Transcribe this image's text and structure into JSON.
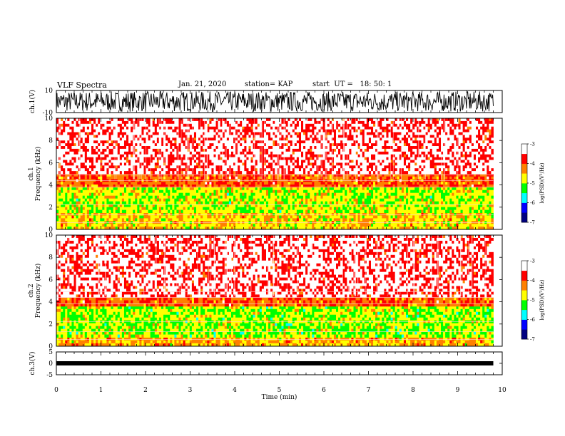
{
  "header": {
    "title": "VLF Spectra",
    "date": "Jan. 21, 2020",
    "station": "station= KAP",
    "start_time": "start  UT =   18: 50: 1"
  },
  "chart_data": [
    {
      "type": "line",
      "panel": "ch1-waveform",
      "ylabel": "ch.1(V)",
      "ylim": [
        -10,
        10
      ],
      "yticks": [
        "10",
        "-10"
      ],
      "xlim": [
        0,
        10
      ],
      "x_data_range": [
        0,
        9.8
      ],
      "description_values": "noisy waveform fluctuating roughly between -10 and 10 V",
      "color": "#000000"
    },
    {
      "type": "heatmap",
      "panel": "ch1-spectrogram",
      "ylabel": "ch.1\nFrequency (kHz)",
      "ylim": [
        0,
        10
      ],
      "yticks": [
        "0",
        "2",
        "4",
        "6",
        "8",
        "10"
      ],
      "xlim": [
        0,
        10
      ],
      "x_data_range": [
        0,
        9.8
      ],
      "colorbar": {
        "label": "log(PSD)(V²/Hz)",
        "range": [
          -7,
          -3
        ],
        "ticks": [
          "-3",
          "-4",
          "-5",
          "-6",
          "-7"
        ],
        "colors": [
          "#000080",
          "#0000ff",
          "#00ffff",
          "#00ff00",
          "#ffff00",
          "#ff8000",
          "#ff0000",
          "#ffffff"
        ]
      },
      "bands": [
        {
          "fmin": 0,
          "fmax": 1.5,
          "level": -4.6
        },
        {
          "fmin": 1.5,
          "fmax": 3.8,
          "level": -4.9
        },
        {
          "fmin": 3.8,
          "fmax": 5.0,
          "level": -4.0
        },
        {
          "fmin": 5.0,
          "fmax": 10,
          "level": -3.3
        }
      ]
    },
    {
      "type": "heatmap",
      "panel": "ch2-spectrogram",
      "ylabel": "ch.2\nFrequency (kHz)",
      "ylim": [
        0,
        10
      ],
      "yticks": [
        "0",
        "2",
        "4",
        "6",
        "8",
        "10"
      ],
      "xlim": [
        0,
        10
      ],
      "x_data_range": [
        0,
        9.8
      ],
      "colorbar": {
        "label": "log(PSD)(V²/Hz)",
        "range": [
          -7,
          -3
        ],
        "ticks": [
          "-3",
          "-4",
          "-5",
          "-6",
          "-7"
        ],
        "colors": [
          "#000080",
          "#0000ff",
          "#00ffff",
          "#00ff00",
          "#ffff00",
          "#ff8000",
          "#ff0000",
          "#ffffff"
        ]
      },
      "bands": [
        {
          "fmin": 0,
          "fmax": 0.8,
          "level": -4.4
        },
        {
          "fmin": 0.8,
          "fmax": 3.6,
          "level": -5.0
        },
        {
          "fmin": 3.6,
          "fmax": 4.4,
          "level": -4.0
        },
        {
          "fmin": 4.4,
          "fmax": 10,
          "level": -3.3
        }
      ]
    },
    {
      "type": "line",
      "panel": "ch3-waveform",
      "ylabel": "ch.3(V)",
      "ylim": [
        -5,
        5
      ],
      "yticks": [
        "5",
        "0",
        "-5"
      ],
      "xlim": [
        0,
        10
      ],
      "x_data_range": [
        0,
        9.8
      ],
      "approx_value": 0,
      "color": "#000000"
    }
  ],
  "xaxis": {
    "label": "Time (min)",
    "ticks": [
      "0",
      "1",
      "2",
      "3",
      "4",
      "5",
      "6",
      "7",
      "8",
      "9",
      "10"
    ]
  }
}
